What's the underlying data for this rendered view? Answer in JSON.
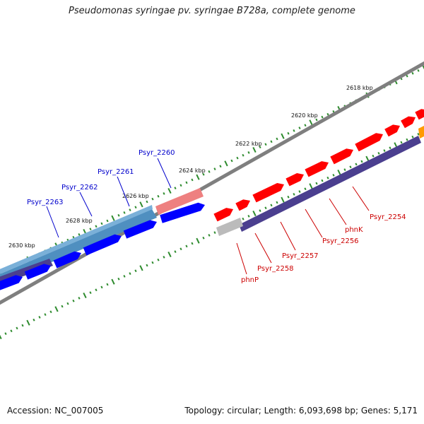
{
  "title": "Pseudomonas syringae pv. syringae B728a, complete genome",
  "footer": {
    "accession": "Accession: NC_007005",
    "summary": "Topology: circular; Length: 6,093,698 bp; Genes: 5,171"
  },
  "colors": {
    "backbone": "#7f7f7f",
    "tick": "#2e8b2e",
    "forward_gene": "#ff0000",
    "reverse_gene": "#0000ff",
    "forward_label": "#cc0000",
    "reverse_label": "#0000cc",
    "forward_operon": "#ee8080",
    "reverse_operon": "#4f8fc0",
    "cds_band": "#4b3f8f"
  },
  "axis": {
    "kbp_labels": [
      "2630 kbp",
      "2628 kbp",
      "2626 kbp",
      "2624 kbp",
      "2622 kbp",
      "2620 kbp",
      "2618 kbp"
    ]
  },
  "genes_reverse": [
    "Psyr_2263",
    "Psyr_2262",
    "Psyr_2261",
    "Psyr_2260"
  ],
  "genes_forward": [
    "phnP",
    "Psyr_2258",
    "Psyr_2257",
    "Psyr_2256",
    "phnK",
    "Psyr_2254"
  ]
}
